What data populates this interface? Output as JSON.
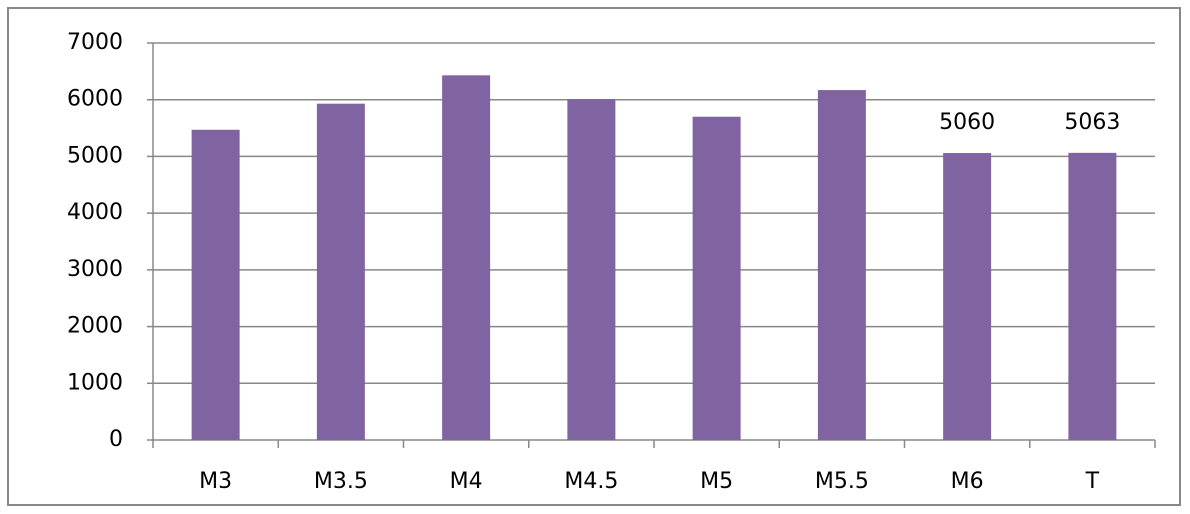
{
  "chart_data": {
    "type": "bar",
    "categories": [
      "M3",
      "M3.5",
      "M4",
      "M4.5",
      "M5",
      "M5.5",
      "M6",
      "T"
    ],
    "values": [
      5470,
      5930,
      6430,
      6010,
      5700,
      6170,
      5060,
      5063
    ],
    "show_value_labels": [
      false,
      false,
      false,
      false,
      false,
      false,
      true,
      true
    ],
    "color": "#8064a2",
    "ylim": [
      0,
      7000
    ],
    "yticks": [
      0,
      1000,
      2000,
      3000,
      4000,
      5000,
      6000,
      7000
    ],
    "grid": true
  }
}
